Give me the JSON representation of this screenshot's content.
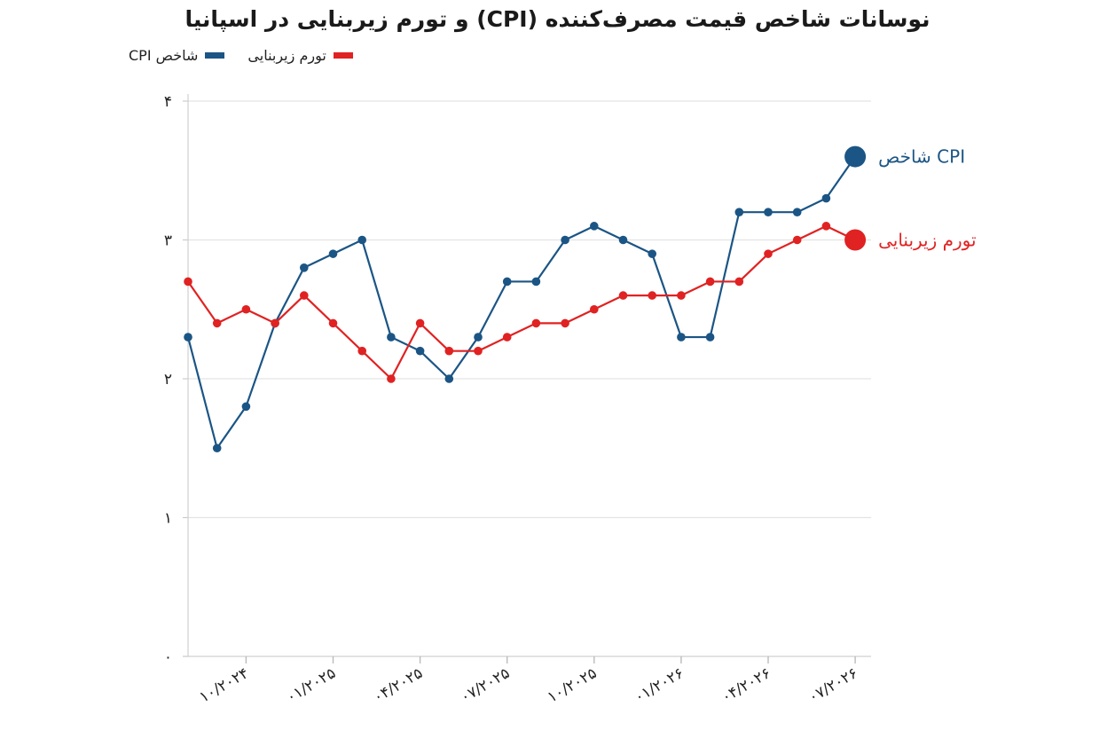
{
  "chart_data": {
    "type": "line",
    "title": "نوسانات شاخص قیمت مصرف‌کننده (CPI) و تورم زیربنایی در اسپانیا",
    "xlabel": "",
    "ylabel": "",
    "ylim": [
      0,
      4
    ],
    "yticks": [
      {
        "value": 0,
        "label": "۰"
      },
      {
        "value": 1,
        "label": "۱"
      },
      {
        "value": 2,
        "label": "۲"
      },
      {
        "value": 3,
        "label": "۳"
      },
      {
        "value": 4,
        "label": "۴"
      }
    ],
    "x": [
      "2024-08",
      "2024-09",
      "2024-10",
      "2024-11",
      "2024-12",
      "2025-01",
      "2025-02",
      "2025-03",
      "2025-04",
      "2025-05",
      "2025-06",
      "2025-07",
      "2025-08",
      "2025-09",
      "2025-10",
      "2025-11",
      "2025-12",
      "2026-01",
      "2026-02",
      "2026-03",
      "2026-04",
      "2026-05",
      "2026-06",
      "2026-07"
    ],
    "xticks": [
      {
        "x": "2024-10",
        "label": "۱۰/۲۰۲۴"
      },
      {
        "x": "2025-01",
        "label": "۰۱/۲۰۲۵"
      },
      {
        "x": "2025-04",
        "label": "۰۴/۲۰۲۵"
      },
      {
        "x": "2025-07",
        "label": "۰۷/۲۰۲۵"
      },
      {
        "x": "2025-10",
        "label": "۱۰/۲۰۲۵"
      },
      {
        "x": "2026-01",
        "label": "۰۱/۲۰۲۶"
      },
      {
        "x": "2026-04",
        "label": "۰۴/۲۰۲۶"
      },
      {
        "x": "2026-07",
        "label": "۰۷/۲۰۲۶"
      }
    ],
    "series": [
      {
        "name": "شاخص CPI",
        "color": "#1b5585",
        "values": [
          2.3,
          1.5,
          1.8,
          2.4,
          2.8,
          2.9,
          3.0,
          2.3,
          2.2,
          2.0,
          2.3,
          2.7,
          2.7,
          3.0,
          3.1,
          3.0,
          2.9,
          2.3,
          2.3,
          3.2,
          3.2,
          3.2,
          3.3,
          3.6
        ]
      },
      {
        "name": "تورم زیربنایی",
        "color": "#e02222",
        "values": [
          2.7,
          2.4,
          2.5,
          2.4,
          2.6,
          2.4,
          2.2,
          2.0,
          2.4,
          2.2,
          2.2,
          2.3,
          2.4,
          2.4,
          2.5,
          2.6,
          2.6,
          2.6,
          2.7,
          2.7,
          2.9,
          3.0,
          3.1,
          3.0
        ]
      }
    ],
    "grid": "horizontal",
    "legend": "top-left",
    "end_labels": true
  }
}
